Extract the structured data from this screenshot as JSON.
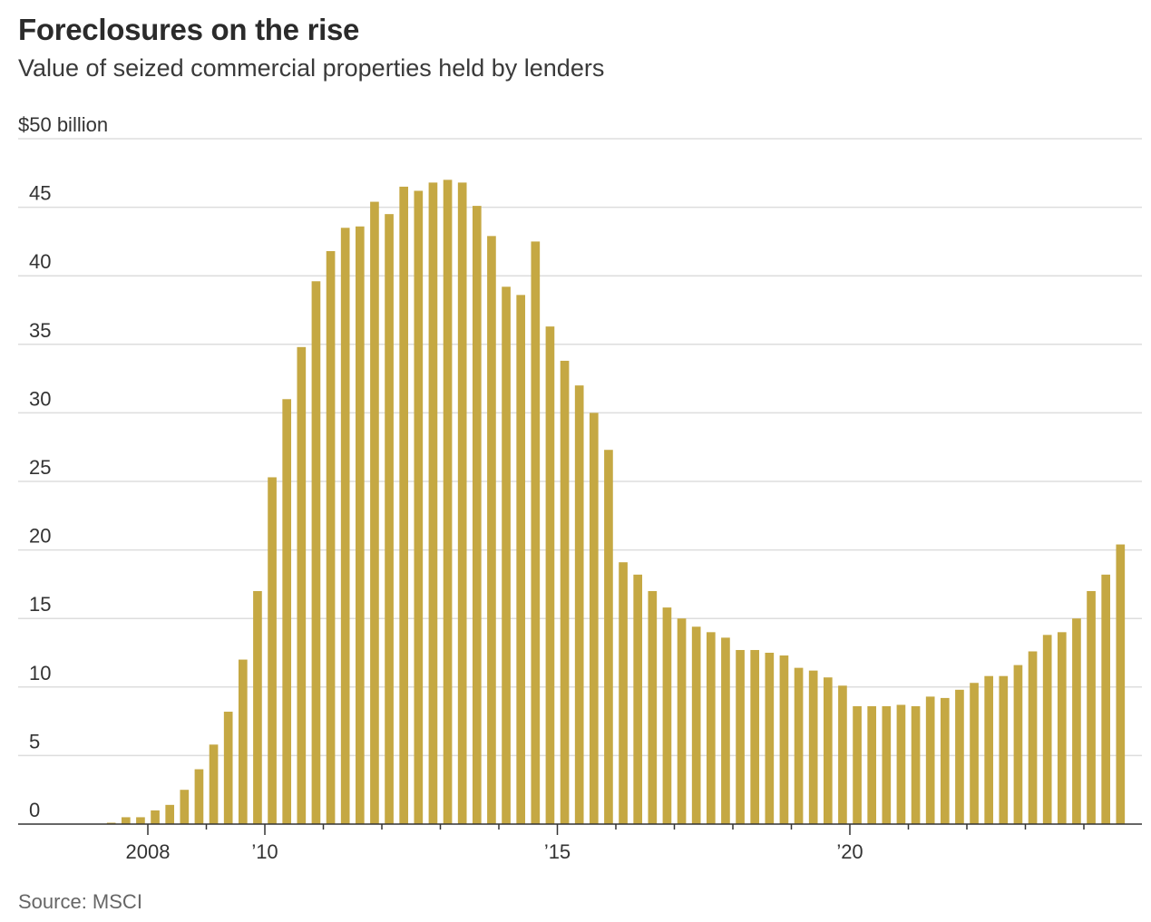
{
  "chart_data": {
    "type": "bar",
    "title": "Foreclosures on the rise",
    "subtitle": "Value of seized commercial properties held by lenders",
    "source": "Source: MSCI",
    "unit_label": "$50 billion",
    "ylim": [
      0,
      50
    ],
    "yticks": [
      0,
      5,
      10,
      15,
      20,
      25,
      30,
      35,
      40,
      45
    ],
    "y_top_label": "$50 billion",
    "xtick_labels": [
      {
        "label": "2008",
        "year": 2008
      },
      {
        "label": "’10",
        "year": 2010
      },
      {
        "label": "’15",
        "year": 2015
      },
      {
        "label": "’20",
        "year": 2020
      }
    ],
    "x_start_year": 2007.25,
    "periods_per_year": 4,
    "bar_color": "#c5a843",
    "values": [
      0.1,
      0.5,
      0.5,
      1.0,
      1.4,
      2.5,
      4.0,
      5.8,
      8.2,
      12.0,
      17.0,
      25.3,
      31.0,
      34.8,
      39.6,
      41.8,
      43.5,
      43.6,
      45.4,
      44.5,
      46.5,
      46.2,
      46.8,
      47.0,
      46.8,
      45.1,
      42.9,
      39.2,
      38.6,
      42.5,
      36.3,
      33.8,
      32.0,
      30.0,
      27.3,
      19.1,
      18.2,
      17.0,
      15.8,
      15.0,
      14.4,
      14.0,
      13.6,
      12.7,
      12.7,
      12.5,
      12.3,
      11.4,
      11.2,
      10.7,
      10.1,
      8.6,
      8.6,
      8.6,
      8.7,
      8.6,
      9.3,
      9.2,
      9.8,
      10.3,
      10.8,
      10.8,
      11.6,
      12.6,
      13.8,
      14.0,
      15.0,
      17.0,
      18.2,
      20.4
    ]
  }
}
